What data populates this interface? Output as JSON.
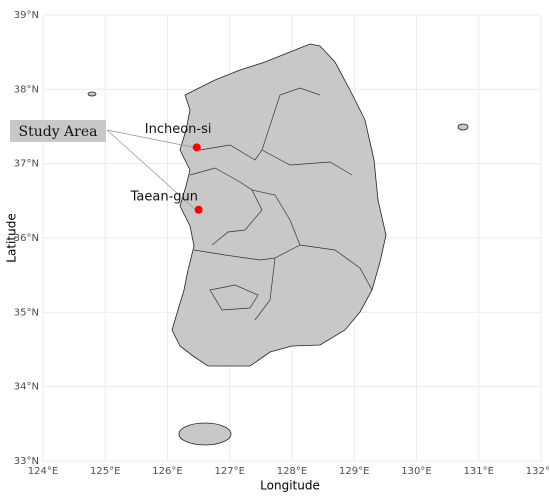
{
  "chart_data": {
    "type": "map",
    "x_label": "Longitude",
    "y_label": "Latitude",
    "xlim": [
      124,
      132
    ],
    "ylim": [
      33,
      39
    ],
    "xticks": [
      {
        "value": 124,
        "label": "124°E"
      },
      {
        "value": 125,
        "label": "125°E"
      },
      {
        "value": 126,
        "label": "126°E"
      },
      {
        "value": 127,
        "label": "127°E"
      },
      {
        "value": 128,
        "label": "128°E"
      },
      {
        "value": 129,
        "label": "129°E"
      },
      {
        "value": 130,
        "label": "130°E"
      },
      {
        "value": 131,
        "label": "131°E"
      },
      {
        "value": 132,
        "label": "132°E"
      }
    ],
    "yticks": [
      {
        "value": 33,
        "label": "33°N"
      },
      {
        "value": 34,
        "label": "34°N"
      },
      {
        "value": 35,
        "label": "35°N"
      },
      {
        "value": 36,
        "label": "36°N"
      },
      {
        "value": 37,
        "label": "37°N"
      },
      {
        "value": 38,
        "label": "38°N"
      },
      {
        "value": 39,
        "label": "39°N"
      }
    ],
    "grid": true,
    "points": {
      "labels": [
        "Incheon-si",
        "Taean-gun"
      ],
      "x": [
        126.47,
        126.5
      ],
      "values": [
        37.22,
        36.38
      ],
      "color": "#ff0000"
    },
    "annotation": "Study Area"
  }
}
